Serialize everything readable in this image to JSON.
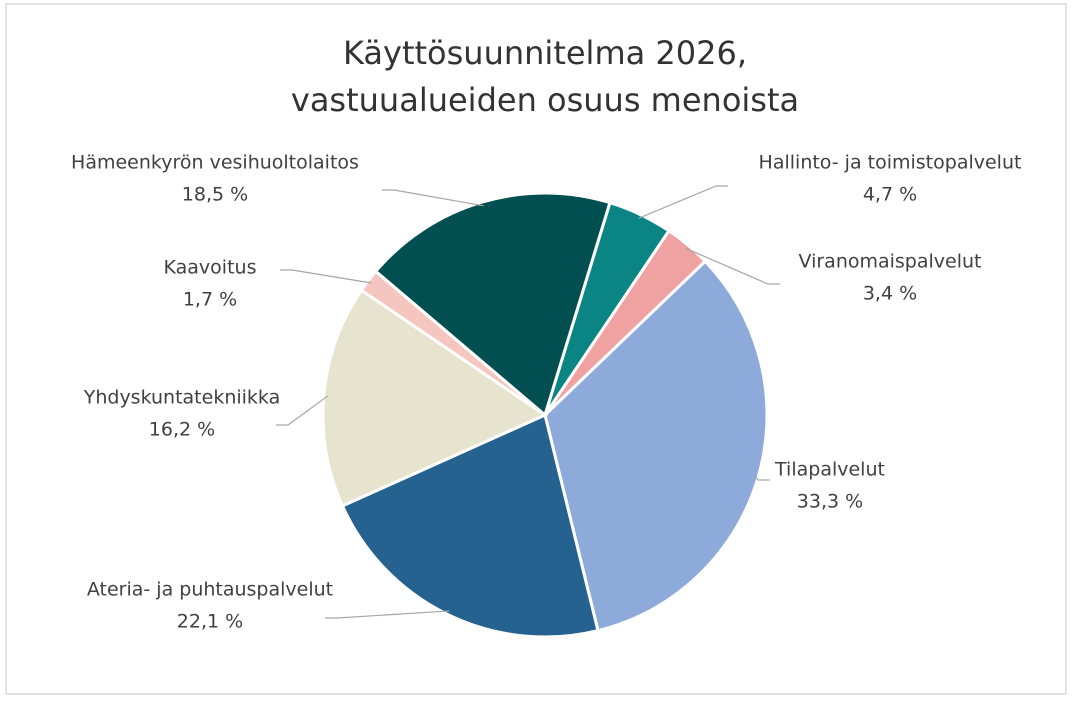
{
  "chart_data": {
    "type": "pie",
    "title": [
      "Käyttösuunnitelma 2026,",
      "vastuualueiden osuus menoista"
    ],
    "categories": [
      "Hallinto- ja toimistopalvelut",
      "Viranomaispalvelut",
      "Tilapalvelut",
      "Ateria- ja puhtauspalvelut",
      "Yhdyskuntatekniikka",
      "Kaavoitus",
      "Hämeenkyrön vesihuoltolaitos"
    ],
    "values": [
      4.7,
      3.4,
      33.3,
      22.1,
      16.2,
      1.7,
      18.5
    ],
    "value_labels": [
      "4,7 %",
      "3,4 %",
      "33,3 %",
      "22,1 %",
      "16,2 %",
      "1,7 %",
      "18,5 %"
    ],
    "colors": [
      "#0a8583",
      "#f0a1a1",
      "#8eaadb",
      "#26628f",
      "#e6e3cf",
      "#f5c6c0",
      "#014f50"
    ]
  }
}
